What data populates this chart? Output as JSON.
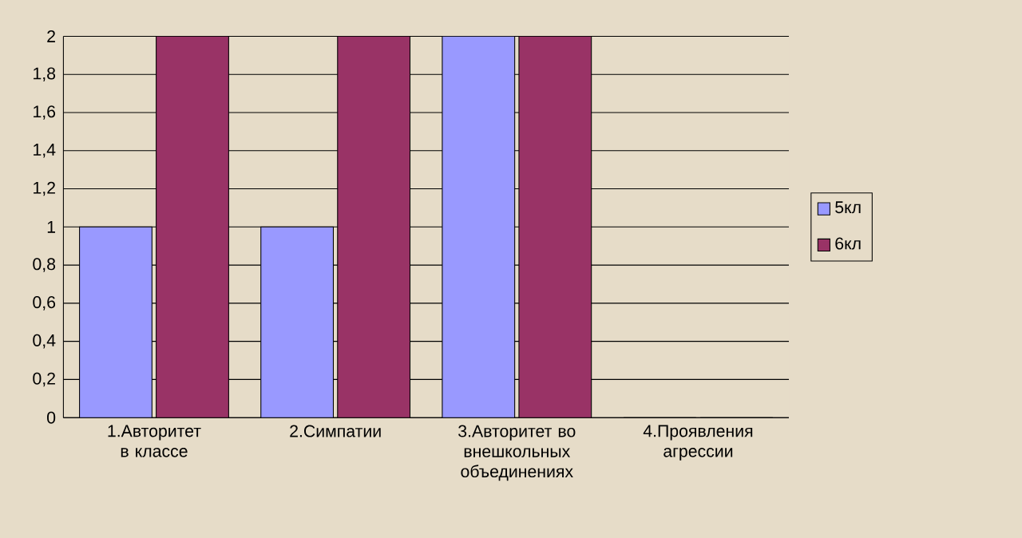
{
  "chart_data": {
    "type": "bar",
    "categories": [
      "1.Авторитет в классе",
      "2.Симпатии",
      "3.Авторитет во внешкольных объединениях",
      "4.Проявления агрессии"
    ],
    "series": [
      {
        "name": "5кл",
        "color": "#9999ff",
        "values": [
          1,
          1,
          2,
          0
        ]
      },
      {
        "name": "6кл",
        "color": "#993366",
        "values": [
          2,
          2,
          2,
          0
        ]
      }
    ],
    "ylim": [
      0,
      2
    ],
    "yticks": [
      0,
      {
        "value": 0.2,
        "label": "0,2"
      },
      {
        "value": 0.4,
        "label": "0,4"
      },
      {
        "value": 0.6,
        "label": "0,6"
      },
      {
        "value": 0.8,
        "label": "0,8"
      },
      1,
      {
        "value": 1.2,
        "label": "1,2"
      },
      {
        "value": 1.4,
        "label": "1,4"
      },
      {
        "value": 1.6,
        "label": "1,6"
      },
      {
        "value": 1.8,
        "label": "1,8"
      },
      2
    ],
    "grid": "y",
    "legend": "right"
  }
}
